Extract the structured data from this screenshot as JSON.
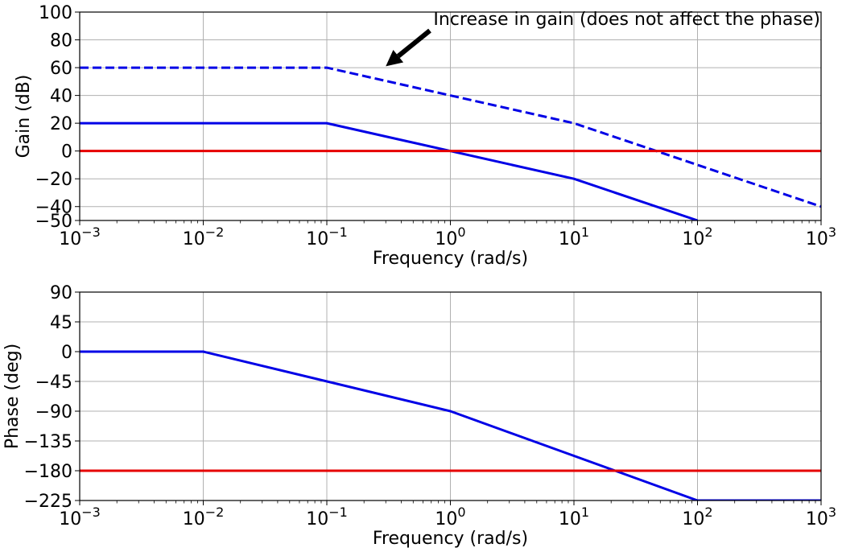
{
  "colors": {
    "series_blue": "#0000e6",
    "reference_red": "#e60000",
    "grid": "#b0b0b0",
    "text": "#000000"
  },
  "chart_data": [
    {
      "type": "line",
      "xscale": "log",
      "xlim": [
        0.001,
        1000
      ],
      "ylim": [
        -50,
        100
      ],
      "xlabel": "Frequency (rad/s)",
      "ylabel": "Gain (dB)",
      "grid": true,
      "x_ticks": [
        {
          "value": 0.001,
          "base": "10",
          "exp": "−3"
        },
        {
          "value": 0.01,
          "base": "10",
          "exp": "−2"
        },
        {
          "value": 0.1,
          "base": "10",
          "exp": "−1"
        },
        {
          "value": 1,
          "base": "10",
          "exp": "0"
        },
        {
          "value": 10,
          "base": "10",
          "exp": "1"
        },
        {
          "value": 100,
          "base": "10",
          "exp": "2"
        },
        {
          "value": 1000,
          "base": "10",
          "exp": "3"
        }
      ],
      "y_ticks": [
        {
          "value": 100,
          "label": "100"
        },
        {
          "value": 80,
          "label": "80"
        },
        {
          "value": 60,
          "label": "60"
        },
        {
          "value": 40,
          "label": "40"
        },
        {
          "value": 20,
          "label": "20"
        },
        {
          "value": 0,
          "label": "0"
        },
        {
          "value": -20,
          "label": "−20"
        },
        {
          "value": -40,
          "label": "−40"
        },
        {
          "value": -50,
          "label": "−50"
        }
      ],
      "series": [
        {
          "color": "#0000e6",
          "style": "dashed",
          "x": [
            0.001,
            0.1,
            10,
            1000
          ],
          "y": [
            60,
            60,
            20,
            -40
          ]
        },
        {
          "color": "#0000e6",
          "style": "solid",
          "x": [
            0.001,
            0.1,
            10,
            100
          ],
          "y": [
            20,
            20,
            -20,
            -50
          ]
        },
        {
          "color": "#e60000",
          "style": "solid",
          "x": [
            0.001,
            1000
          ],
          "y": [
            0,
            0
          ]
        }
      ],
      "annotation": {
        "text": "Increase in gain (does not affect the phase)",
        "point_at": {
          "x": 0.3,
          "y": 61
        }
      }
    },
    {
      "type": "line",
      "xscale": "log",
      "xlim": [
        0.001,
        1000
      ],
      "ylim": [
        -225,
        90
      ],
      "xlabel": "Frequency (rad/s)",
      "ylabel": "Phase (deg)",
      "grid": true,
      "x_ticks": [
        {
          "value": 0.001,
          "base": "10",
          "exp": "−3"
        },
        {
          "value": 0.01,
          "base": "10",
          "exp": "−2"
        },
        {
          "value": 0.1,
          "base": "10",
          "exp": "−1"
        },
        {
          "value": 1,
          "base": "10",
          "exp": "0"
        },
        {
          "value": 10,
          "base": "10",
          "exp": "1"
        },
        {
          "value": 100,
          "base": "10",
          "exp": "2"
        },
        {
          "value": 1000,
          "base": "10",
          "exp": "3"
        }
      ],
      "y_ticks": [
        {
          "value": 90,
          "label": "90"
        },
        {
          "value": 45,
          "label": "45"
        },
        {
          "value": 0,
          "label": "0"
        },
        {
          "value": -45,
          "label": "−45"
        },
        {
          "value": -90,
          "label": "−90"
        },
        {
          "value": -135,
          "label": "−135"
        },
        {
          "value": -180,
          "label": "−180"
        },
        {
          "value": -225,
          "label": "−225"
        }
      ],
      "series": [
        {
          "color": "#0000e6",
          "style": "solid",
          "x": [
            0.001,
            0.01,
            1,
            100,
            1000
          ],
          "y": [
            0,
            0,
            -90,
            -225,
            -225
          ]
        },
        {
          "color": "#e60000",
          "style": "solid",
          "x": [
            0.001,
            1000
          ],
          "y": [
            -180,
            -180
          ]
        }
      ]
    }
  ]
}
